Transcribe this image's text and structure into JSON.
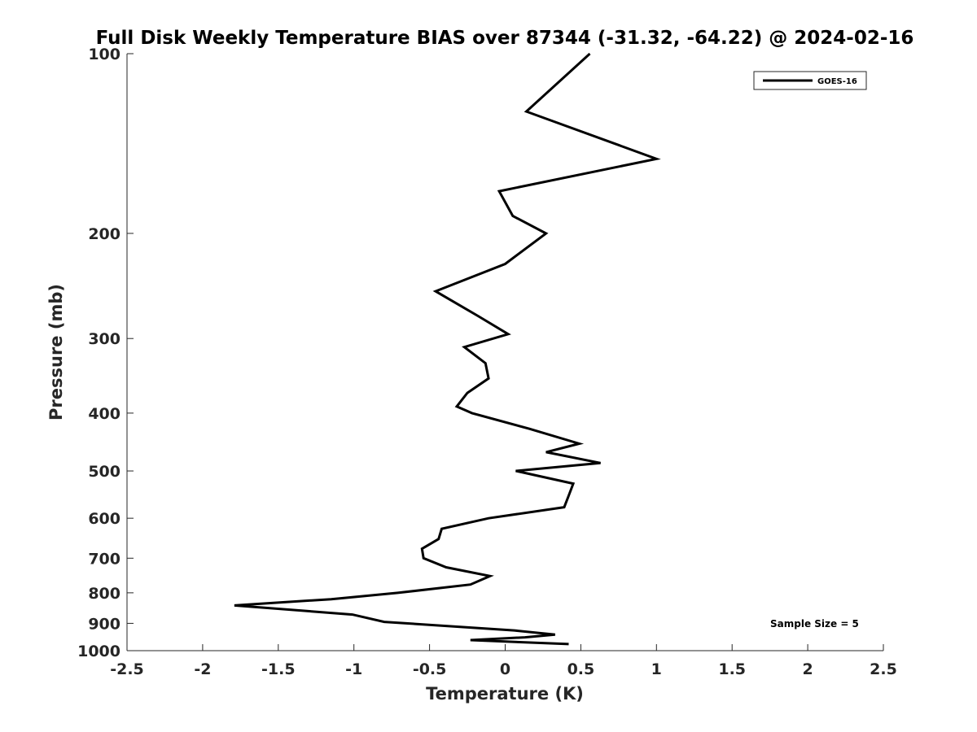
{
  "chart_data": {
    "type": "line",
    "title": "Full Disk Weekly Temperature BIAS over 87344 (-31.32, -64.22) @ 2024-02-16",
    "xlabel": "Temperature (K)",
    "ylabel": "Pressure (mb)",
    "xlim": [
      -2.5,
      2.5
    ],
    "ylim": [
      100,
      1000
    ],
    "y_scale": "log",
    "y_reversed": true,
    "x_ticks": [
      -2.5,
      -2,
      -1.5,
      -1,
      -0.5,
      0,
      0.5,
      1,
      1.5,
      2,
      2.5
    ],
    "x_tick_labels": [
      "-2.5",
      "-2",
      "-1.5",
      "-1",
      "-0.5",
      "0",
      "0.5",
      "1",
      "1.5",
      "2",
      "2.5"
    ],
    "y_ticks": [
      100,
      200,
      300,
      400,
      500,
      600,
      700,
      800,
      900,
      1000
    ],
    "y_tick_labels": [
      "100",
      "200",
      "300",
      "400",
      "500",
      "600",
      "700",
      "800",
      "900",
      "1000"
    ],
    "grid": false,
    "legend_position": "top-right",
    "annotation": "Sample Size = 5",
    "series": [
      {
        "name": "GOES-16",
        "color": "#000000",
        "x": [
          0.56,
          0.14,
          1.0,
          -0.04,
          0.05,
          0.27,
          0.0,
          -0.46,
          -0.18,
          0.02,
          -0.27,
          -0.13,
          -0.11,
          -0.25,
          -0.32,
          -0.22,
          0.16,
          0.49,
          0.27,
          0.63,
          0.07,
          0.45,
          0.42,
          0.39,
          -0.11,
          -0.42,
          -0.44,
          -0.55,
          -0.54,
          -0.39,
          -0.1,
          -0.23,
          -0.71,
          -1.15,
          -1.79,
          -1.01,
          -0.8,
          0.06,
          0.33,
          0.13,
          -0.23,
          0.42
        ],
        "y": [
          100,
          125,
          150,
          170,
          187,
          200,
          225,
          250,
          275,
          295,
          310,
          330,
          350,
          370,
          390,
          400,
          425,
          450,
          465,
          485,
          500,
          525,
          550,
          575,
          600,
          625,
          650,
          675,
          700,
          725,
          750,
          775,
          800,
          820,
          840,
          870,
          895,
          925,
          940,
          950,
          960,
          975
        ]
      }
    ]
  }
}
